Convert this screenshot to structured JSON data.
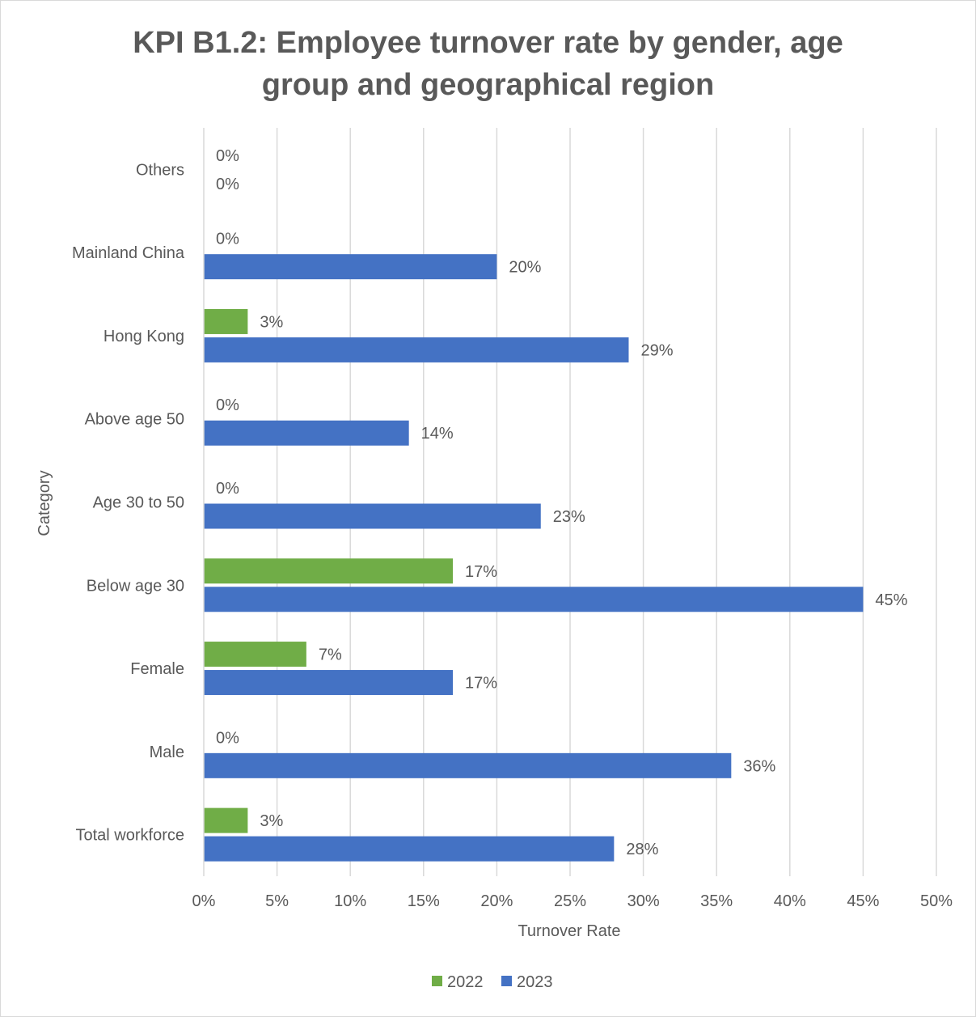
{
  "chart_data": {
    "type": "bar",
    "orientation": "horizontal",
    "title": "KPI B1.2: Employee turnover rate by gender, age group and geographical region",
    "xlabel": "Turnover Rate",
    "ylabel": "Category",
    "xlim": [
      0,
      50
    ],
    "x_ticks": [
      "0%",
      "5%",
      "10%",
      "15%",
      "20%",
      "25%",
      "30%",
      "35%",
      "40%",
      "45%",
      "50%"
    ],
    "categories": [
      "Total workforce",
      "Male",
      "Female",
      "Below age 30",
      "Age 30 to 50",
      "Above age 50",
      "Hong Kong",
      "Mainland China",
      "Others"
    ],
    "series": [
      {
        "name": "2022",
        "color": "#70ad47",
        "values": [
          3,
          0,
          7,
          17,
          0,
          0,
          3,
          0,
          0
        ],
        "labels": [
          "3%",
          "0%",
          "7%",
          "17%",
          "0%",
          "0%",
          "3%",
          "0%",
          "0%"
        ]
      },
      {
        "name": "2023",
        "color": "#4472c4",
        "values": [
          28,
          36,
          17,
          45,
          23,
          14,
          29,
          20,
          0
        ],
        "labels": [
          "28%",
          "36%",
          "17%",
          "45%",
          "23%",
          "14%",
          "29%",
          "20%",
          "0%"
        ]
      }
    ],
    "grid": true,
    "legend": "bottom-center"
  }
}
